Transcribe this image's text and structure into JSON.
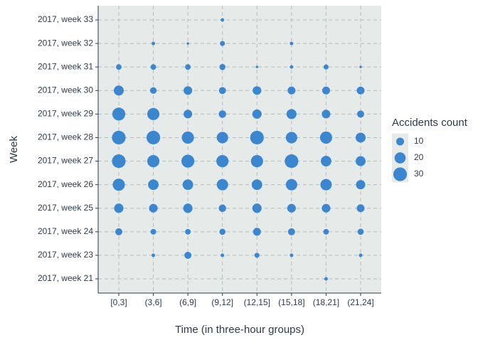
{
  "chart_data": {
    "type": "bubble",
    "x_label": "Time (in three-hour groups)",
    "y_label": "Week",
    "legend_title": "Accidents count",
    "color": "#3a87d0",
    "grid": true,
    "categories": [
      "[0,3]",
      "(3,6]",
      "(6,9]",
      "(9,12]",
      "(12,15]",
      "(15,18]",
      "(18,21]",
      "(21,24]"
    ],
    "y_categories": [
      "2017, week 21",
      "2017, week 23",
      "2017, week 24",
      "2017, week 25",
      "2017, week 26",
      "2017, week 27",
      "2017, week 28",
      "2017, week 29",
      "2017, week 30",
      "2017, week 31",
      "2017, week 32",
      "2017, week 33"
    ],
    "sizes": [
      [
        null,
        null,
        null,
        null,
        null,
        null,
        2,
        null
      ],
      [
        null,
        2,
        8,
        2,
        4,
        2,
        null,
        2
      ],
      [
        8,
        5,
        5,
        6,
        10,
        8,
        5,
        6
      ],
      [
        14,
        12,
        14,
        9,
        14,
        12,
        12,
        10
      ],
      [
        24,
        18,
        18,
        21,
        18,
        21,
        21,
        14
      ],
      [
        30,
        24,
        27,
        24,
        24,
        30,
        18,
        16
      ],
      [
        30,
        30,
        24,
        21,
        30,
        21,
        24,
        16
      ],
      [
        27,
        24,
        12,
        9,
        14,
        16,
        12,
        8
      ],
      [
        16,
        7,
        12,
        8,
        12,
        10,
        10,
        10
      ],
      [
        5,
        5,
        5,
        6,
        1,
        2,
        4,
        1
      ],
      [
        null,
        2,
        1,
        4,
        null,
        2,
        null,
        null
      ],
      [
        null,
        null,
        null,
        2,
        null,
        null,
        null,
        null
      ]
    ],
    "size_legend": [
      10,
      20,
      30
    ]
  }
}
